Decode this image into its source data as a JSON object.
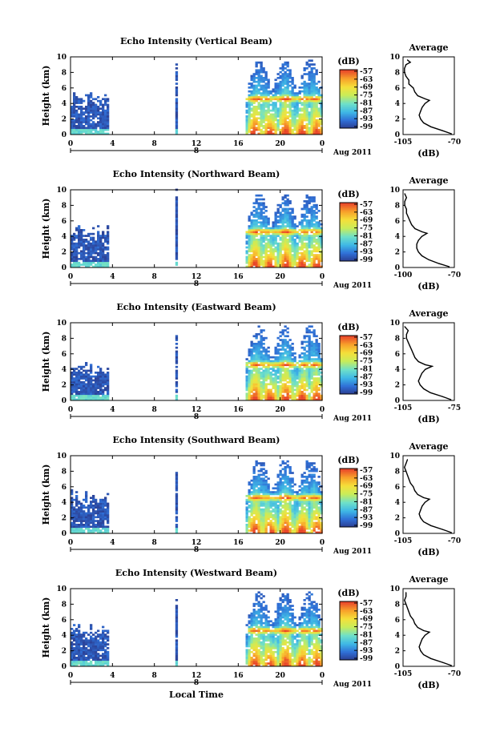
{
  "chart_data": [
    {
      "type": "heatmap",
      "title": "Echo Intensity (Vertical Beam)",
      "ylabel": "Height (km)",
      "xticks": [
        "0",
        "4",
        "8",
        "12",
        "16",
        "20",
        "0"
      ],
      "yticks": [
        "0",
        "2",
        "4",
        "6",
        "8",
        "10"
      ],
      "xlim": [
        0,
        24
      ],
      "ylim": [
        0,
        10
      ],
      "date_label": "8",
      "month_label": "Aug 2011",
      "colorbar": {
        "unit": "(dB)",
        "ticks": [
          "-57",
          "-63",
          "-69",
          "-75",
          "-81",
          "-87",
          "-93",
          "-99"
        ]
      },
      "echo_regions": [
        {
          "start": 0,
          "end": 3.6,
          "top": 5.5,
          "intensity": "low"
        },
        {
          "start": 10.0,
          "end": 10.2,
          "top": 10.0,
          "intensity": "low"
        },
        {
          "start": 16.7,
          "end": 24,
          "top": 9.5,
          "intensity": "high",
          "bright_band_km": 4.5
        }
      ],
      "average_profile": {
        "title": "Average",
        "xlabel": "(dB)",
        "xticks": [
          "-105",
          "-70"
        ],
        "xlim": [
          -105,
          -70
        ],
        "yticks": [
          "0",
          "2",
          "4",
          "6",
          "8",
          "10"
        ],
        "height_km": [
          0.1,
          0.5,
          1.0,
          1.5,
          2.0,
          2.5,
          3.0,
          3.5,
          4.0,
          4.4,
          4.6,
          5.0,
          5.5,
          6.0,
          6.5,
          7.0,
          7.5,
          8.0,
          8.5,
          9.0,
          9.3,
          9.6
        ],
        "intensity_db": [
          -72,
          -78,
          -86,
          -91,
          -93,
          -94,
          -93,
          -92,
          -90,
          -87,
          -90,
          -95,
          -97,
          -98,
          -101,
          -101,
          -103,
          -104,
          -104,
          -103,
          -100,
          -102
        ]
      }
    },
    {
      "type": "heatmap",
      "title": "Echo Intensity (Northward Beam)",
      "ylabel": "Height (km)",
      "xticks": [
        "0",
        "4",
        "8",
        "12",
        "16",
        "20",
        "0"
      ],
      "yticks": [
        "0",
        "2",
        "4",
        "6",
        "8",
        "10"
      ],
      "xlim": [
        0,
        24
      ],
      "ylim": [
        0,
        10
      ],
      "date_label": "8",
      "month_label": "Aug 2011",
      "colorbar": {
        "unit": "(dB)",
        "ticks": [
          "-57",
          "-63",
          "-69",
          "-75",
          "-81",
          "-87",
          "-93",
          "-99"
        ]
      },
      "echo_regions": [
        {
          "start": 0,
          "end": 3.6,
          "top": 5.5,
          "intensity": "low"
        },
        {
          "start": 10.0,
          "end": 10.2,
          "top": 10.0,
          "intensity": "low"
        },
        {
          "start": 16.7,
          "end": 24,
          "top": 9.5,
          "intensity": "high",
          "bright_band_km": 4.5
        }
      ],
      "average_profile": {
        "title": "Average",
        "xlabel": "(dB)",
        "xticks": [
          "-100",
          "-70"
        ],
        "xlim": [
          -100,
          -70
        ],
        "yticks": [
          "0",
          "2",
          "4",
          "6",
          "8",
          "10"
        ],
        "height_km": [
          0.1,
          0.5,
          1.0,
          1.5,
          2.0,
          2.5,
          3.0,
          3.5,
          4.0,
          4.4,
          4.6,
          5.0,
          5.5,
          6.0,
          6.5,
          7.0,
          7.5,
          8.0,
          8.5,
          9.0,
          9.5
        ],
        "intensity_db": [
          -73,
          -79,
          -85,
          -89,
          -91,
          -92,
          -92,
          -91,
          -89,
          -86,
          -89,
          -93,
          -95,
          -96,
          -97,
          -98,
          -98,
          -99,
          -99,
          -98,
          -99
        ]
      }
    },
    {
      "type": "heatmap",
      "title": "Echo Intensity (Eastward Beam)",
      "ylabel": "Height (km)",
      "xticks": [
        "0",
        "4",
        "8",
        "12",
        "16",
        "20",
        "0"
      ],
      "yticks": [
        "0",
        "2",
        "4",
        "6",
        "8",
        "10"
      ],
      "xlim": [
        0,
        24
      ],
      "ylim": [
        0,
        10
      ],
      "date_label": "8",
      "month_label": "Aug 2011",
      "colorbar": {
        "unit": "(dB)",
        "ticks": [
          "-57",
          "-63",
          "-69",
          "-75",
          "-81",
          "-87",
          "-93",
          "-99"
        ]
      },
      "echo_regions": [
        {
          "start": 0,
          "end": 3.6,
          "top": 5.0,
          "intensity": "low"
        },
        {
          "start": 10.0,
          "end": 10.2,
          "top": 10.0,
          "intensity": "low"
        },
        {
          "start": 16.7,
          "end": 24,
          "top": 9.5,
          "intensity": "high",
          "bright_band_km": 4.5
        }
      ],
      "average_profile": {
        "title": "Average",
        "xlabel": "(dB)",
        "xticks": [
          "-105",
          "-75"
        ],
        "xlim": [
          -105,
          -75
        ],
        "yticks": [
          "0",
          "2",
          "4",
          "6",
          "8",
          "10"
        ],
        "height_km": [
          0.1,
          0.5,
          1.0,
          1.5,
          2.0,
          2.5,
          3.0,
          3.5,
          4.0,
          4.4,
          4.6,
          5.0,
          5.5,
          6.0,
          6.5,
          7.0,
          7.5,
          8.0,
          8.5,
          9.0,
          9.5
        ],
        "intensity_db": [
          -77,
          -82,
          -89,
          -93,
          -95,
          -96,
          -95,
          -94,
          -92,
          -88,
          -92,
          -96,
          -98,
          -99,
          -100,
          -101,
          -102,
          -103,
          -103,
          -102,
          -104
        ]
      }
    },
    {
      "type": "heatmap",
      "title": "Echo Intensity (Southward Beam)",
      "ylabel": "Height (km)",
      "xticks": [
        "0",
        "4",
        "8",
        "12",
        "16",
        "20",
        "0"
      ],
      "yticks": [
        "0",
        "2",
        "4",
        "6",
        "8",
        "10"
      ],
      "xlim": [
        0,
        24
      ],
      "ylim": [
        0,
        10
      ],
      "date_label": "8",
      "month_label": "Aug 2011",
      "colorbar": {
        "unit": "(dB)",
        "ticks": [
          "-57",
          "-63",
          "-69",
          "-75",
          "-81",
          "-87",
          "-93",
          "-99"
        ]
      },
      "echo_regions": [
        {
          "start": 0,
          "end": 3.6,
          "top": 5.5,
          "intensity": "low"
        },
        {
          "start": 10.0,
          "end": 10.2,
          "top": 10.0,
          "intensity": "low"
        },
        {
          "start": 16.7,
          "end": 24,
          "top": 9.5,
          "intensity": "high",
          "bright_band_km": 4.5
        }
      ],
      "average_profile": {
        "title": "Average",
        "xlabel": "(dB)",
        "xticks": [
          "-105",
          "-70"
        ],
        "xlim": [
          -105,
          -70
        ],
        "yticks": [
          "0",
          "2",
          "4",
          "6",
          "8",
          "10"
        ],
        "height_km": [
          0.1,
          0.5,
          1.0,
          1.5,
          2.0,
          2.5,
          3.0,
          3.5,
          4.0,
          4.4,
          4.6,
          5.0,
          5.5,
          6.0,
          6.5,
          7.0,
          7.5,
          8.0,
          8.5,
          9.0,
          9.5
        ],
        "intensity_db": [
          -72,
          -78,
          -86,
          -91,
          -93,
          -94,
          -93,
          -92,
          -90,
          -87,
          -91,
          -95,
          -97,
          -98,
          -100,
          -101,
          -102,
          -103,
          -104,
          -103,
          -102
        ]
      }
    },
    {
      "type": "heatmap",
      "title": "Echo Intensity (Westward Beam)",
      "ylabel": "Height (km)",
      "xticks": [
        "0",
        "4",
        "8",
        "12",
        "16",
        "20",
        "0"
      ],
      "yticks": [
        "0",
        "2",
        "4",
        "6",
        "8",
        "10"
      ],
      "xlim": [
        0,
        24
      ],
      "ylim": [
        0,
        10
      ],
      "date_label": "8",
      "month_label": "Aug 2011",
      "xlabel": "Local Time",
      "colorbar": {
        "unit": "(dB)",
        "ticks": [
          "-57",
          "-63",
          "-69",
          "-75",
          "-81",
          "-87",
          "-93",
          "-99"
        ]
      },
      "echo_regions": [
        {
          "start": 0,
          "end": 3.6,
          "top": 5.5,
          "intensity": "low"
        },
        {
          "start": 10.0,
          "end": 10.2,
          "top": 10.0,
          "intensity": "low"
        },
        {
          "start": 16.7,
          "end": 24,
          "top": 9.5,
          "intensity": "high",
          "bright_band_km": 4.5
        }
      ],
      "average_profile": {
        "title": "Average",
        "xlabel": "(dB)",
        "xticks": [
          "-105",
          "-70"
        ],
        "xlim": [
          -105,
          -70
        ],
        "yticks": [
          "0",
          "2",
          "4",
          "6",
          "8",
          "10"
        ],
        "height_km": [
          0.1,
          0.5,
          1.0,
          1.5,
          2.0,
          2.5,
          3.0,
          3.5,
          4.0,
          4.4,
          4.6,
          5.0,
          5.5,
          6.0,
          6.5,
          7.0,
          7.5,
          8.0,
          8.5,
          9.0,
          9.5
        ],
        "intensity_db": [
          -72,
          -78,
          -86,
          -91,
          -93,
          -94,
          -93,
          -92,
          -90,
          -87,
          -91,
          -95,
          -97,
          -98,
          -100,
          -101,
          -102,
          -103,
          -104,
          -103,
          -103
        ]
      }
    }
  ],
  "colors": {
    "scale": [
      "#2b3a8c",
      "#2f6fd6",
      "#3fb8e6",
      "#6fe0c8",
      "#c8ec5a",
      "#f5e03a",
      "#f8a12a",
      "#e8452a"
    ]
  }
}
